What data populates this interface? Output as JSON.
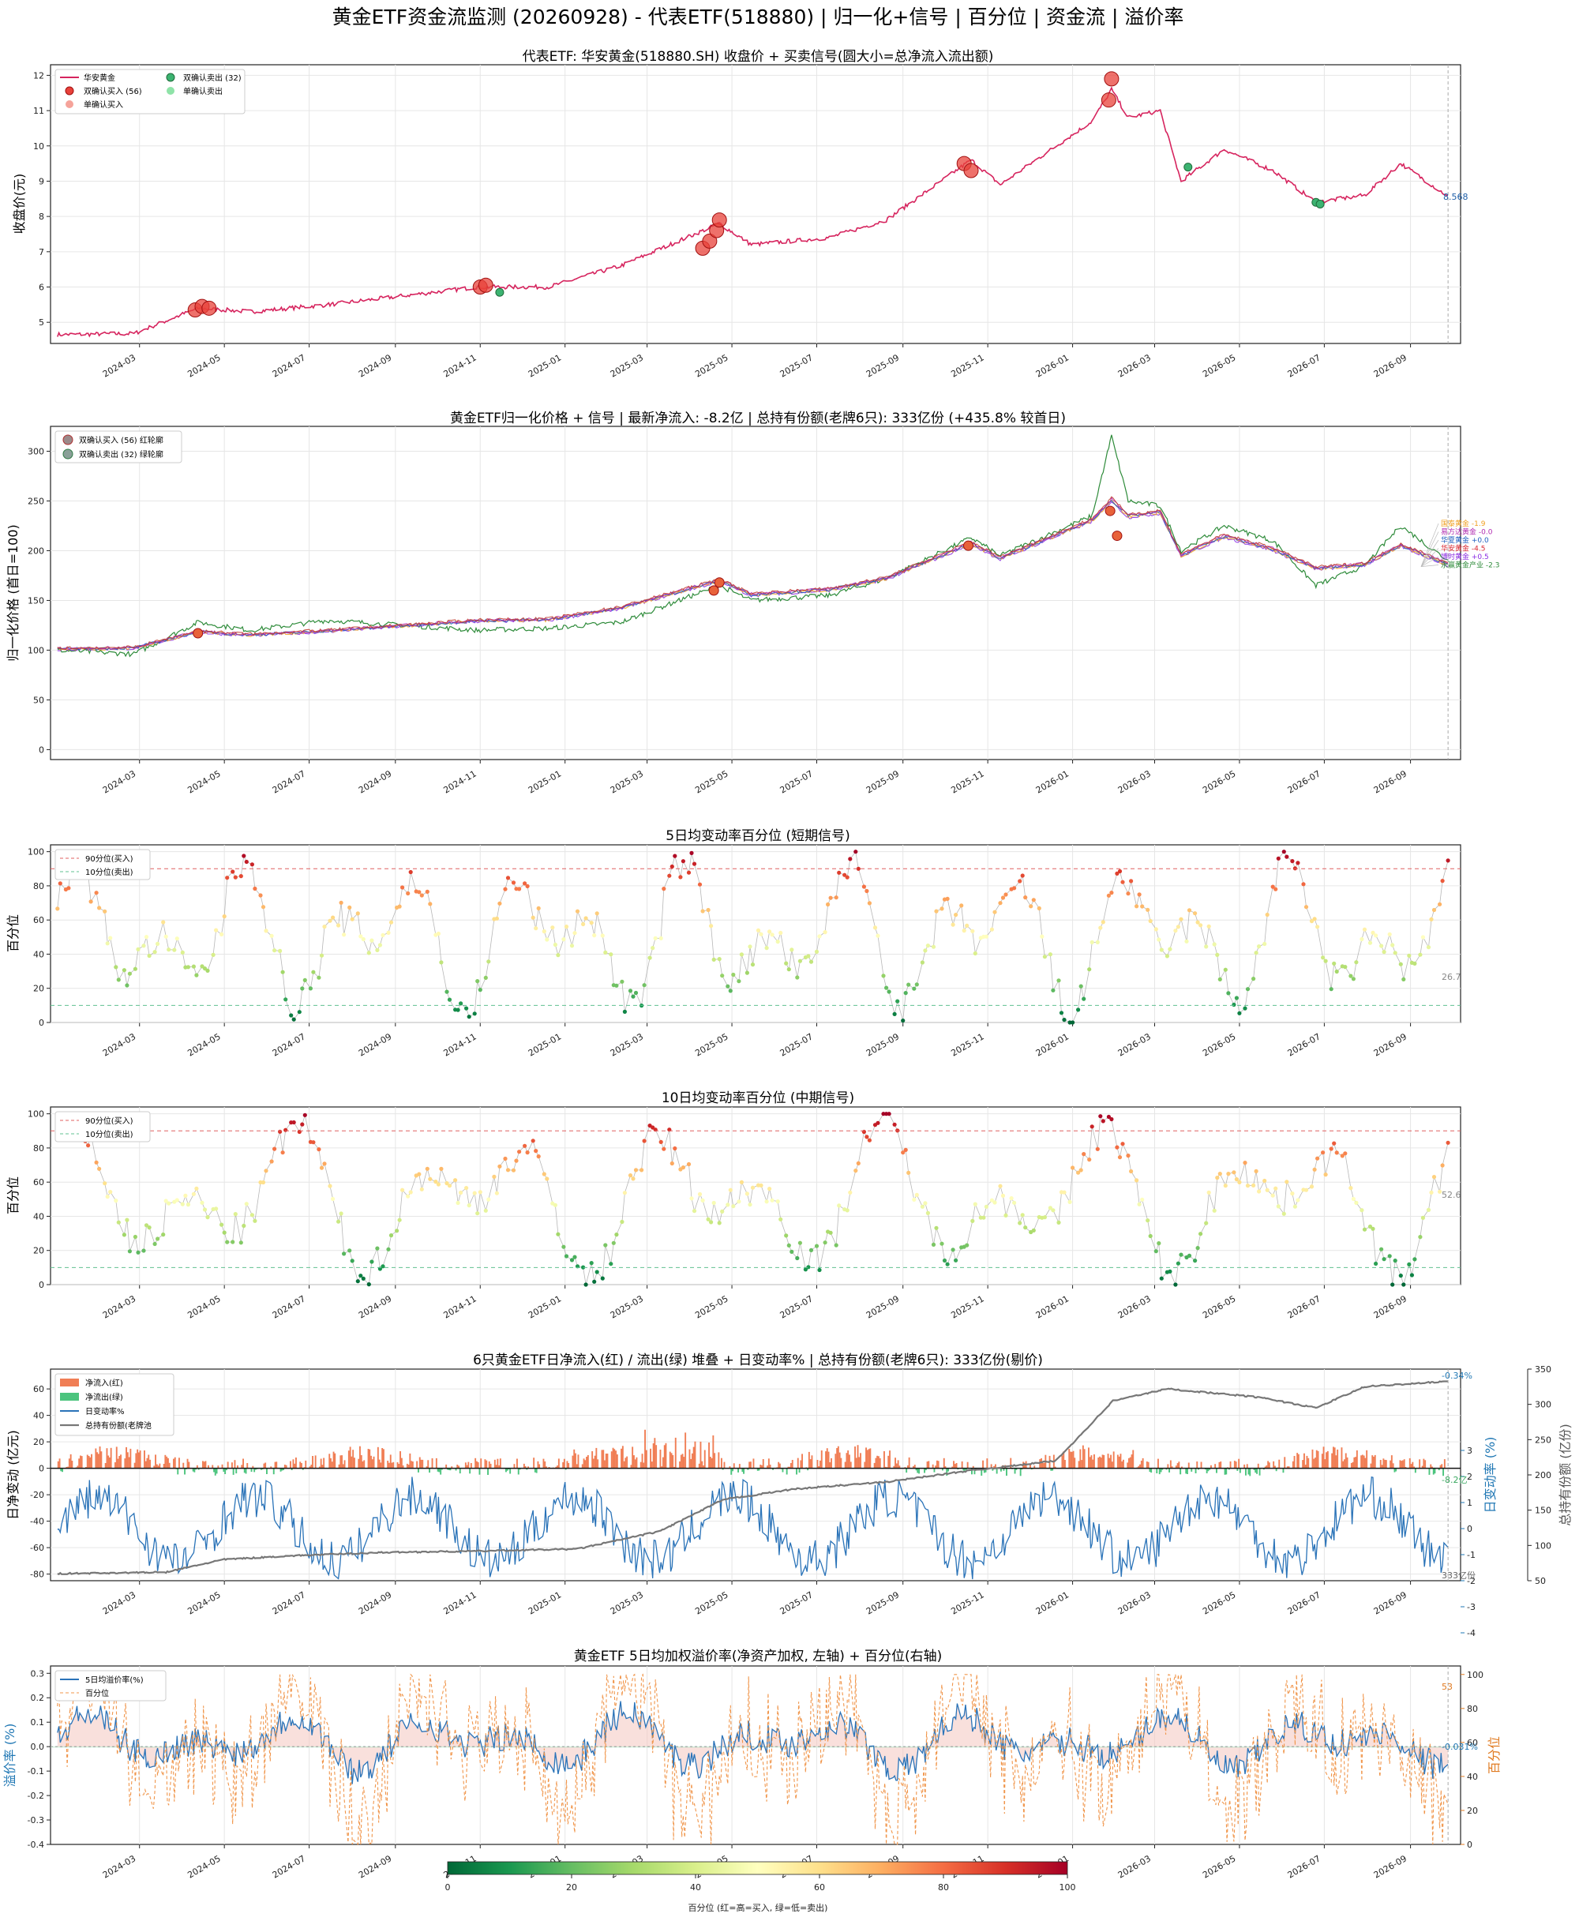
{
  "page_title": "黄金ETF资金流监测 (20260928) - 代表ETF(518880) | 归一化+信号 | 百分位 | 资金流 | 溢价率",
  "colorbar": {
    "ticks": [
      "0",
      "20",
      "40",
      "60",
      "80",
      "100"
    ],
    "label": "百分位 (红=高=买入, 绿=低=卖出)"
  },
  "chart_data": [
    {
      "type": "line",
      "id": "price",
      "title": "代表ETF: 华安黄金(518880.SH) 收盘价 + 买卖信号(圆大小=总净流入流出额)",
      "ylabel": "收盘价(元)",
      "ylim": [
        4.4,
        12.3
      ],
      "yticks": [
        "5",
        "6",
        "7",
        "8",
        "9",
        "10",
        "11",
        "12"
      ],
      "xtick_labels": [
        "2024-03",
        "2024-05",
        "2024-07",
        "2024-09",
        "2024-11",
        "2025-01",
        "2025-03",
        "2025-05",
        "2025-07",
        "2025-09",
        "2025-11",
        "2026-01",
        "2026-03",
        "2026-05",
        "2026-07",
        "2026-09"
      ],
      "legend": [
        "华安黄金",
        "双确认买入 (56)",
        "单确认买入",
        "双确认卖出 (32)",
        "单确认卖出"
      ],
      "last_label": "8.568",
      "anchors_x": [
        "2024-01-02",
        "2024-02-26",
        "2024-04-12",
        "2024-05-20",
        "2024-07-15",
        "2024-10-30",
        "2024-12-20",
        "2025-02-10",
        "2025-04-22",
        "2025-05-15",
        "2025-07-10",
        "2025-08-20",
        "2025-10-20",
        "2025-11-10",
        "2026-01-15",
        "2026-01-29",
        "2026-02-10",
        "2026-03-05",
        "2026-03-20",
        "2026-04-20",
        "2026-05-25",
        "2026-06-25",
        "2026-07-30",
        "2026-08-25",
        "2026-09-28"
      ],
      "anchors_y": [
        4.65,
        4.68,
        5.4,
        5.3,
        5.5,
        6.0,
        6.0,
        6.6,
        7.8,
        7.2,
        7.4,
        7.9,
        9.6,
        8.9,
        10.7,
        11.6,
        10.8,
        11.0,
        9.0,
        9.9,
        9.3,
        8.4,
        8.6,
        9.5,
        8.568
      ],
      "buy_double": [
        [
          "2024-04-10",
          5.35
        ],
        [
          "2024-04-15",
          5.45
        ],
        [
          "2024-04-20",
          5.4
        ],
        [
          "2024-11-01",
          6.0
        ],
        [
          "2024-11-05",
          6.05
        ],
        [
          "2025-04-10",
          7.1
        ],
        [
          "2025-04-15",
          7.3
        ],
        [
          "2025-04-20",
          7.6
        ],
        [
          "2025-04-22",
          7.9
        ],
        [
          "2025-10-15",
          9.5
        ],
        [
          "2025-10-20",
          9.3
        ],
        [
          "2026-01-27",
          11.3
        ],
        [
          "2026-01-29",
          11.9
        ]
      ],
      "sell_double": [
        [
          "2024-11-15",
          5.85
        ],
        [
          "2026-03-25",
          9.4
        ],
        [
          "2026-06-25",
          8.4
        ],
        [
          "2026-06-28",
          8.35
        ]
      ]
    },
    {
      "type": "line",
      "id": "norm",
      "title": "黄金ETF归一化价格 + 信号 | 最新净流入: -8.2亿 | 总持有份额(老牌6只): 333亿份 (+435.8% 较首日)",
      "ylabel": "归一化价格 (首日=100)",
      "ylim": [
        -10,
        325
      ],
      "yticks": [
        "0",
        "50",
        "100",
        "150",
        "200",
        "250",
        "300"
      ],
      "legend": [
        "双确认买入 (56) 红轮廓",
        "双确认卖出 (32) 绿轮廓"
      ],
      "end_labels": [
        {
          "text": "国泰黄金 -1.9",
          "color": "#f0a020"
        },
        {
          "text": "易方达黄金 -0.0",
          "color": "#b02ab0"
        },
        {
          "text": "华夏黄金 +0.0",
          "color": "#1f5fc0"
        },
        {
          "text": "华安黄金 -4.5",
          "color": "#d9262f"
        },
        {
          "text": "博时黄金 +0.5",
          "color": "#8a2be2"
        },
        {
          "text": "永赢黄金产业 -2.3",
          "color": "#2e8b3a"
        }
      ],
      "series_main_x": [
        "2024-01-02",
        "2024-02-26",
        "2024-04-12",
        "2024-05-20",
        "2024-07-15",
        "2024-10-30",
        "2024-12-20",
        "2025-02-10",
        "2025-04-22",
        "2025-05-15",
        "2025-07-10",
        "2025-08-20",
        "2025-10-20",
        "2025-11-10",
        "2026-01-15",
        "2026-01-29",
        "2026-02-10",
        "2026-03-05",
        "2026-03-20",
        "2026-04-20",
        "2026-05-25",
        "2026-06-25",
        "2026-07-30",
        "2026-08-25",
        "2026-09-28"
      ],
      "series_main_y": [
        100,
        101,
        117,
        114,
        118,
        128,
        129,
        141,
        168,
        154,
        159,
        170,
        205,
        190,
        228,
        248,
        232,
        236,
        193,
        212,
        199,
        180,
        184,
        203,
        184
      ],
      "series_green_y": [
        100,
        96,
        128,
        120,
        130,
        120,
        122,
        128,
        165,
        150,
        155,
        172,
        213,
        195,
        235,
        315,
        250,
        245,
        200,
        225,
        210,
        165,
        185,
        225,
        190
      ]
    },
    {
      "type": "scatter",
      "id": "pct5",
      "title": "5日均变动率百分位 (短期信号)",
      "ylabel": "百分位",
      "ylim": [
        0,
        104
      ],
      "yticks": [
        "0",
        "20",
        "40",
        "60",
        "80",
        "100"
      ],
      "legend": [
        "90分位(买入)",
        "10分位(卖出)"
      ],
      "last_label": "26.7"
    },
    {
      "type": "scatter",
      "id": "pct10",
      "title": "10日均变动率百分位 (中期信号)",
      "ylabel": "百分位",
      "ylim": [
        0,
        104
      ],
      "yticks": [
        "0",
        "20",
        "40",
        "60",
        "80",
        "100"
      ],
      "legend": [
        "90分位(买入)",
        "10分位(卖出)"
      ],
      "last_label": "52.6"
    },
    {
      "type": "area",
      "id": "flow",
      "title": "6只黄金ETF日净流入(红) / 流出(绿) 堆叠 + 日变动率% | 总持有份额(老牌6只): 333亿份(剔价)",
      "ylabel": "日净变动 (亿元)",
      "ylabel_right": "日变动率 (%)",
      "ylabel_right2": "总持有份额 (亿份)",
      "ylim": [
        -85,
        75
      ],
      "yticks": [
        "-80",
        "-60",
        "-40",
        "-20",
        "0",
        "20",
        "40",
        "60"
      ],
      "yticks_right": [
        "-4",
        "-3",
        "-2",
        "-1",
        "0",
        "1",
        "2",
        "3"
      ],
      "yticks_right2": [
        "50",
        "100",
        "150",
        "200",
        "250",
        "300",
        "350"
      ],
      "legend": [
        "净流入(红)",
        "净流出(绿)",
        "日变动率%",
        "总持有份额(老牌池"
      ],
      "ann_top": "-0.34%",
      "ann_mid": "-8.2亿",
      "ann_bottom": "333亿份",
      "holdings_x": [
        "2024-01-02",
        "2024-03-20",
        "2024-04-30",
        "2024-06-15",
        "2024-08-20",
        "2024-10-30",
        "2025-01-10",
        "2025-03-10",
        "2025-04-25",
        "2025-06-15",
        "2025-08-20",
        "2025-10-15",
        "2025-12-20",
        "2026-01-30",
        "2026-03-10",
        "2026-05-15",
        "2026-06-25",
        "2026-07-30",
        "2026-09-28"
      ],
      "holdings_y": [
        60,
        62,
        80,
        85,
        90,
        92,
        95,
        120,
        165,
        180,
        190,
        205,
        220,
        305,
        322,
        310,
        295,
        325,
        333
      ]
    },
    {
      "type": "line",
      "id": "premium",
      "title": "黄金ETF 5日均加权溢价率(净资产加权, 左轴) + 百分位(右轴)",
      "ylabel": "溢价率 (%)",
      "ylabel_right": "百分位",
      "ylim": [
        -0.4,
        0.33
      ],
      "yticks": [
        "-0.4",
        "-0.3",
        "-0.2",
        "-0.1",
        "0.0",
        "0.1",
        "0.2",
        "0.3"
      ],
      "yticks_right": [
        "0",
        "20",
        "40",
        "60",
        "80",
        "100"
      ],
      "legend": [
        "5日均溢价率(%)",
        "百分位"
      ],
      "last_pct": "53",
      "last_prem": "-0.031%"
    }
  ]
}
